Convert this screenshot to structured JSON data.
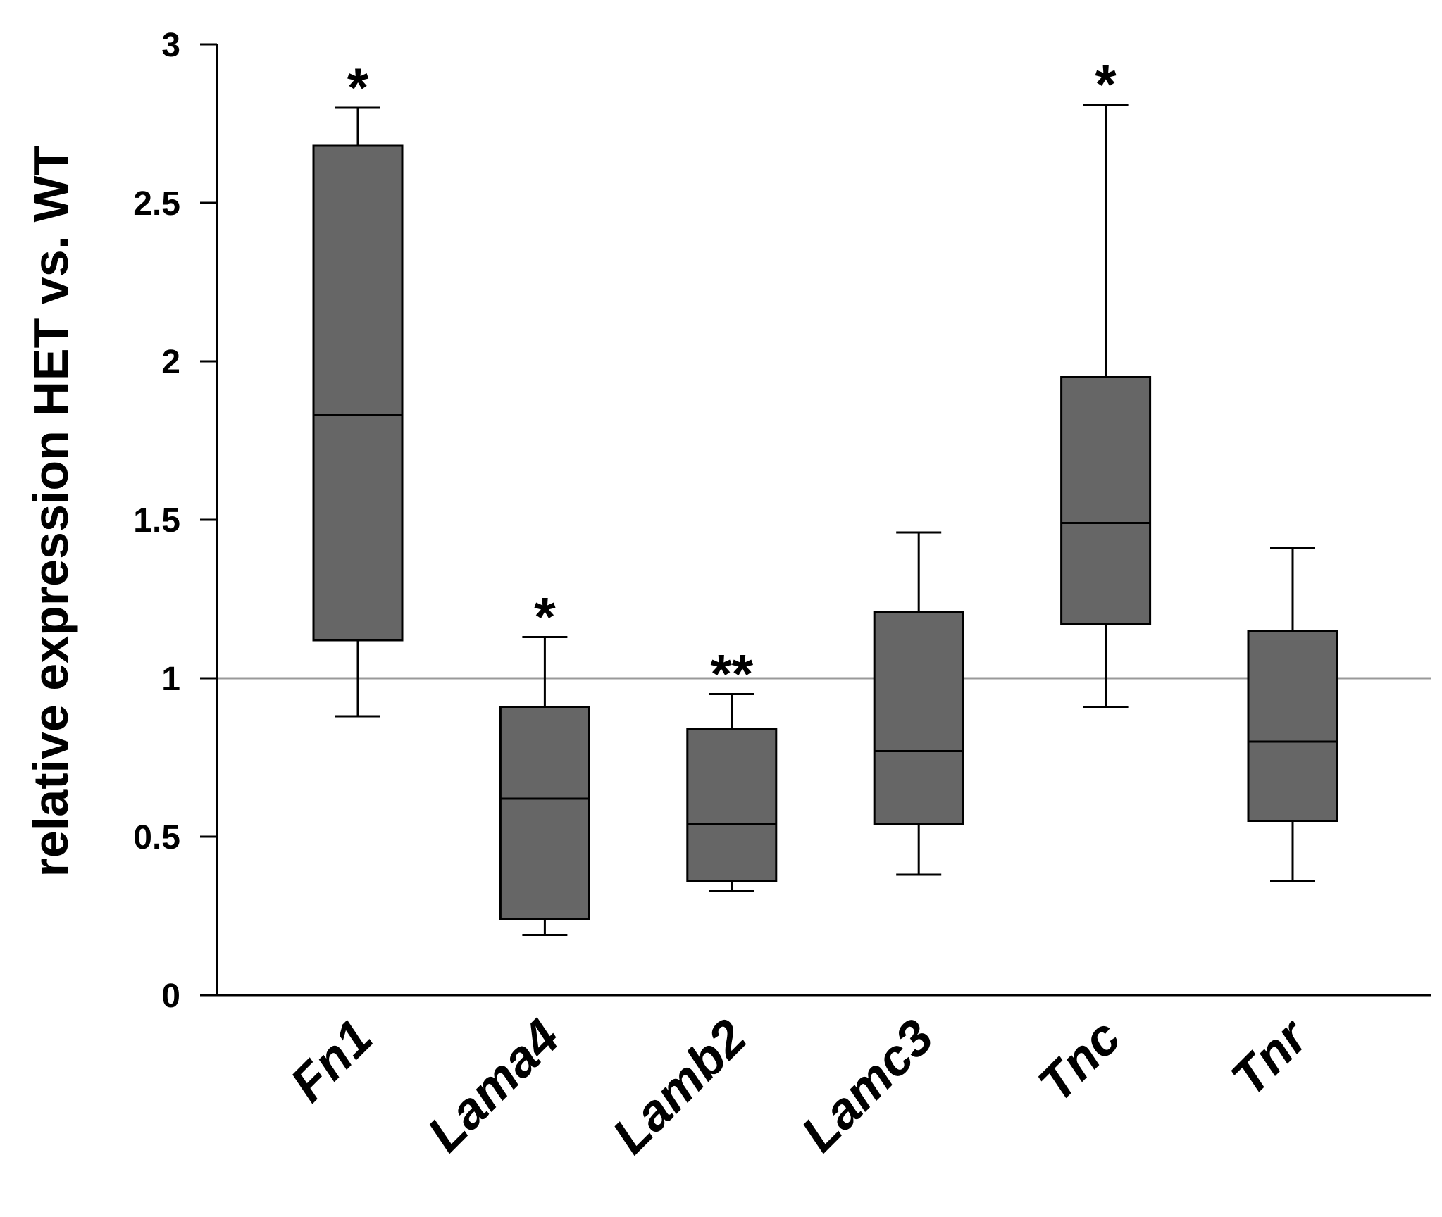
{
  "chart_data": {
    "type": "box",
    "title": "",
    "xlabel": "",
    "ylabel": "relative expression HET vs. WT",
    "ylim": [
      0,
      3
    ],
    "yticks": [
      {
        "value": 0,
        "label": "0"
      },
      {
        "value": 0.5,
        "label": "0.5"
      },
      {
        "value": 1,
        "label": "1"
      },
      {
        "value": 1.5,
        "label": "1.5"
      },
      {
        "value": 2,
        "label": "2"
      },
      {
        "value": 2.5,
        "label": "2.5"
      },
      {
        "value": 3,
        "label": "3"
      }
    ],
    "reference_line": 1,
    "colors": {
      "box_fill": "#666666",
      "outline": "#000000",
      "reference_line": "#999999"
    },
    "boxes": [
      {
        "category": "Fn1",
        "whisker_low": 0.88,
        "q1": 1.12,
        "median": 1.83,
        "q3": 2.68,
        "whisker_high": 2.8,
        "significance": "*"
      },
      {
        "category": "Lama4",
        "whisker_low": 0.19,
        "q1": 0.24,
        "median": 0.62,
        "q3": 0.91,
        "whisker_high": 1.13,
        "significance": "*"
      },
      {
        "category": "Lamb2",
        "whisker_low": 0.33,
        "q1": 0.36,
        "median": 0.54,
        "q3": 0.84,
        "whisker_high": 0.95,
        "significance": "**"
      },
      {
        "category": "Lamc3",
        "whisker_low": 0.38,
        "q1": 0.54,
        "median": 0.77,
        "q3": 1.21,
        "whisker_high": 1.46,
        "significance": ""
      },
      {
        "category": "Tnc",
        "whisker_low": 0.91,
        "q1": 1.17,
        "median": 1.49,
        "q3": 1.95,
        "whisker_high": 2.81,
        "significance": "*"
      },
      {
        "category": "Tnr",
        "whisker_low": 0.36,
        "q1": 0.55,
        "median": 0.8,
        "q3": 1.15,
        "whisker_high": 1.41,
        "significance": ""
      }
    ]
  }
}
